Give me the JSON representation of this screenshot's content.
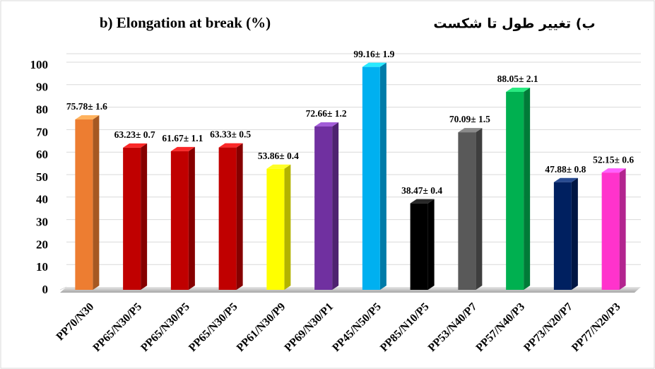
{
  "chart_data": {
    "type": "bar3d",
    "title": "b) Elongation at break (%)",
    "subtitle": "ب) تغییر طول تا شکست",
    "categories": [
      "PP70/N30",
      "PP65/N30/P5",
      "PP65/N30/P5",
      "PP65/N30/P5",
      "PP61/N30/P9",
      "PP69/N30/P1",
      "PP45/N50/P5",
      "PP85/N10/P5",
      "PP53/N40/P7",
      "PP57/N40/P3",
      "PP73/N20/P7",
      "PP77/N20/P3"
    ],
    "values": [
      75.78,
      63.23,
      61.67,
      63.33,
      53.86,
      72.66,
      99.16,
      38.47,
      70.09,
      88.05,
      47.88,
      52.15
    ],
    "errors": [
      1.6,
      0.7,
      1.1,
      0.5,
      0.4,
      1.2,
      1.9,
      0.4,
      1.5,
      2.1,
      0.8,
      0.6
    ],
    "value_labels": [
      "75.78± 1.6",
      "63.23± 0.7",
      "61.67± 1.1",
      "63.33± 0.5",
      "53.86± 0.4",
      "72.66± 1.2",
      "99.16± 1.9",
      "38.47± 0.4",
      "70.09± 1.5",
      "88.05± 2.1",
      "47.88± 0.8",
      "52.15± 0.6"
    ],
    "colors": [
      "#ed7d31",
      "#c00000",
      "#c00000",
      "#c00000",
      "#ffff00",
      "#7030a0",
      "#00b0f0",
      "#000000",
      "#595959",
      "#00b050",
      "#002060",
      "#ff33cc"
    ],
    "ylim": [
      0,
      100
    ],
    "yticks": [
      0,
      10,
      20,
      30,
      40,
      50,
      60,
      70,
      80,
      90,
      100
    ],
    "grid": true
  }
}
